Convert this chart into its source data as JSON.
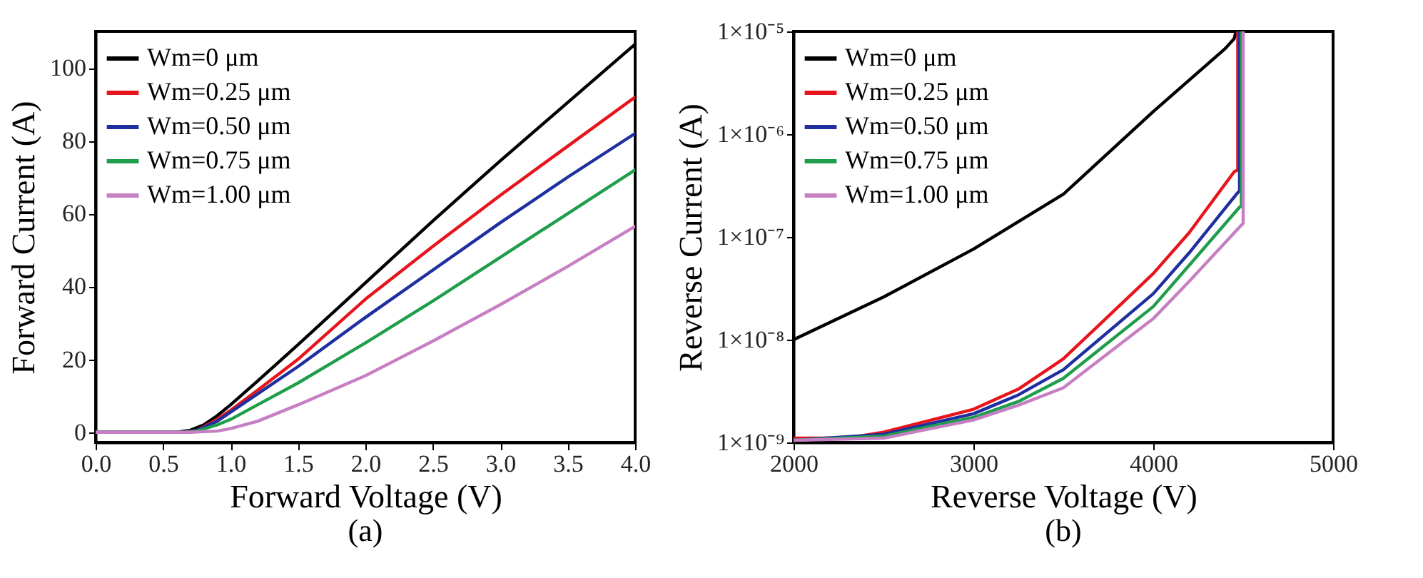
{
  "chart_data": [
    {
      "type": "line",
      "xlabel": "Forward Voltage (V)",
      "ylabel": "Forward Current (A)",
      "annotations": [
        "(a)"
      ],
      "xlim": [
        0,
        4
      ],
      "ylim": [
        -2.8,
        110
      ],
      "xticks": [
        {
          "value": 0,
          "label": "0.0"
        },
        {
          "value": 0.5,
          "label": "0.5"
        },
        {
          "value": 1,
          "label": "1.0"
        },
        {
          "value": 1.5,
          "label": "1.5"
        },
        {
          "value": 2,
          "label": "2.0"
        },
        {
          "value": 2.5,
          "label": "2.5"
        },
        {
          "value": 3,
          "label": "3.0"
        },
        {
          "value": 3.5,
          "label": "3.5"
        },
        {
          "value": 4,
          "label": "4.0"
        }
      ],
      "yticks": [
        0,
        20,
        40,
        60,
        80,
        100
      ],
      "grid": false,
      "legend": "top left",
      "line_style": "solid",
      "marker": "none",
      "series": [
        {
          "name": "Wm=0 μm",
          "color": "#000000",
          "x": [
            0,
            0.6,
            0.7,
            0.8,
            0.9,
            1.0,
            1.2,
            1.5,
            2.0,
            2.5,
            3.0,
            3.5,
            4.0
          ],
          "values": [
            0,
            0,
            0.5,
            2,
            4.5,
            7.5,
            14,
            24,
            41,
            58,
            74.5,
            90.5,
            106.5
          ]
        },
        {
          "name": "Wm=0.25 μm",
          "color": "#e8141c",
          "x": [
            0,
            0.65,
            0.75,
            0.9,
            1.0,
            1.2,
            1.5,
            2.0,
            2.5,
            3.0,
            3.5,
            4.0
          ],
          "values": [
            0,
            0,
            0.5,
            3.5,
            6,
            11.5,
            20,
            36.5,
            51,
            65,
            78.5,
            92
          ]
        },
        {
          "name": "Wm=0.50 μm",
          "color": "#1f2fa0",
          "x": [
            0,
            0.65,
            0.75,
            0.9,
            1.0,
            1.2,
            1.5,
            2.0,
            2.5,
            3.0,
            3.5,
            4.0
          ],
          "values": [
            0,
            0,
            0.5,
            3,
            5.5,
            10.5,
            18,
            31.5,
            44.5,
            57.5,
            70,
            82
          ]
        },
        {
          "name": "Wm=0.75 μm",
          "color": "#1e9e4a",
          "x": [
            0,
            0.65,
            0.75,
            0.9,
            1.0,
            1.2,
            1.5,
            2.0,
            2.5,
            3.0,
            3.5,
            4.0
          ],
          "values": [
            0,
            0,
            0.3,
            2,
            3.5,
            7.5,
            13.5,
            24.5,
            36,
            48,
            60,
            72
          ]
        },
        {
          "name": "Wm=1.00 μm",
          "color": "#c77fc4",
          "x": [
            0,
            0.7,
            0.9,
            1.0,
            1.2,
            1.5,
            2.0,
            2.5,
            3.0,
            3.5,
            4.0
          ],
          "values": [
            0,
            0,
            0.3,
            1,
            3,
            7.5,
            15.5,
            25,
            35,
            45.5,
            56.5
          ]
        }
      ]
    },
    {
      "type": "line",
      "xlabel": "Reverse Voltage (V)",
      "ylabel": "Reverse Current (A)",
      "annotations": [
        "(b)"
      ],
      "xlim": [
        2000,
        5000
      ],
      "ylim": [
        1e-09,
        1e-05
      ],
      "log": "y",
      "xticks": [
        2000,
        3000,
        4000,
        5000
      ],
      "yticks": [
        {
          "value": 1e-09,
          "label": "1×10⁻⁹"
        },
        {
          "value": 1e-08,
          "label": "1×10⁻⁸"
        },
        {
          "value": 1e-07,
          "label": "1×10⁻⁷"
        },
        {
          "value": 1e-06,
          "label": "1×10⁻⁶"
        },
        {
          "value": 1e-05,
          "label": "1×10⁻⁵"
        }
      ],
      "grid": false,
      "legend": "top left",
      "line_style": "solid",
      "marker": "none",
      "series": [
        {
          "name": "Wm=0 μm",
          "color": "#000000",
          "x": [
            2000,
            2500,
            3000,
            3500,
            4000,
            4400,
            4450,
            4460
          ],
          "values": [
            1e-08,
            2.6e-08,
            7.6e-08,
            2.6e-07,
            1.66e-06,
            6.8e-06,
            8.5e-06,
            1e-05
          ]
        },
        {
          "name": "Wm=0.25 μm",
          "color": "#e8141c",
          "x": [
            2000,
            2300,
            2500,
            3000,
            3250,
            3500,
            4000,
            4200,
            4450,
            4470,
            4470
          ],
          "values": [
            1.1e-09,
            1.1e-09,
            1.26e-09,
            2.1e-09,
            3.3e-09,
            6.5e-09,
            4.4e-08,
            1.1e-07,
            4.3e-07,
            4.5e-07,
            1e-05
          ]
        },
        {
          "name": "Wm=0.50 μm",
          "color": "#1f2fa0",
          "x": [
            2000,
            2500,
            3000,
            3250,
            3500,
            4000,
            4200,
            4470,
            4480,
            4480
          ],
          "values": [
            1.05e-09,
            1.2e-09,
            1.9e-09,
            2.9e-09,
            5.1e-09,
            2.8e-08,
            7e-08,
            2.7e-07,
            2.8e-07,
            1e-05
          ]
        },
        {
          "name": "Wm=0.75 μm",
          "color": "#1e9e4a",
          "x": [
            2000,
            2500,
            3000,
            3250,
            3500,
            4000,
            4200,
            4480,
            4490,
            4490
          ],
          "values": [
            1.05e-09,
            1.15e-09,
            1.75e-09,
            2.5e-09,
            4.2e-09,
            2.1e-08,
            5.3e-08,
            1.95e-07,
            2e-07,
            1e-05
          ]
        },
        {
          "name": "Wm=1.00 μm",
          "color": "#c77fc4",
          "x": [
            2000,
            2500,
            3000,
            3250,
            3500,
            4000,
            4200,
            4490,
            4500,
            4500
          ],
          "values": [
            1.05e-09,
            1.1e-09,
            1.65e-09,
            2.3e-09,
            3.4e-09,
            1.6e-08,
            3.7e-08,
            1.3e-07,
            1.35e-07,
            1e-05
          ]
        }
      ]
    }
  ]
}
